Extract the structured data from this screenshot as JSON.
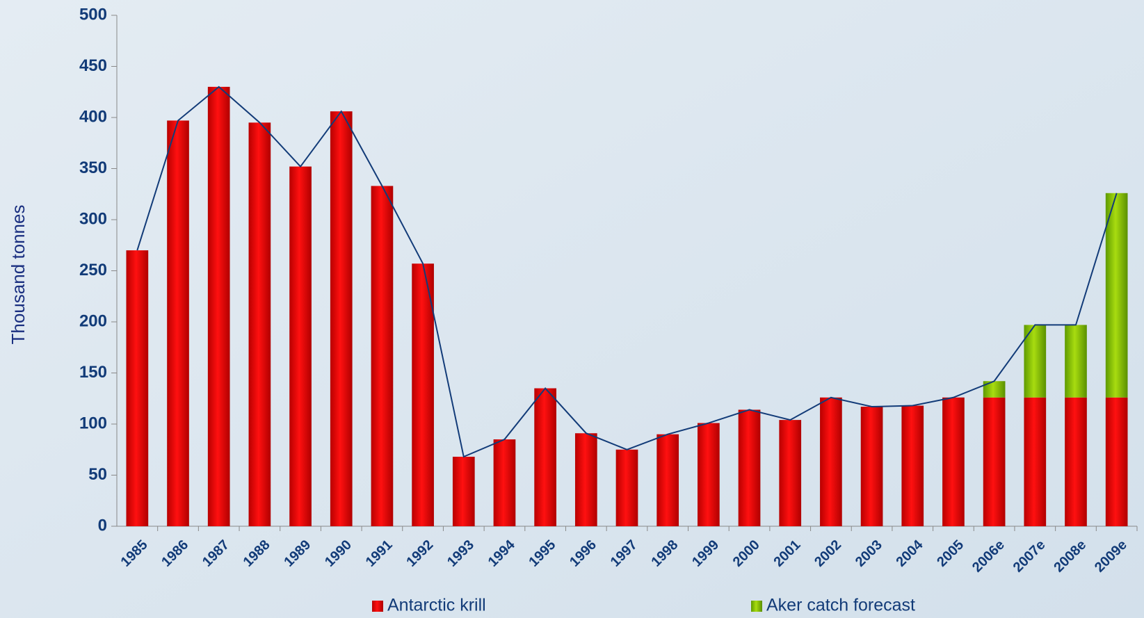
{
  "chart_data": {
    "type": "stacked_bar",
    "y_label": "Thousand tonnes",
    "categories": [
      "1985",
      "1986",
      "1987",
      "1988",
      "1989",
      "1990",
      "1991",
      "1992",
      "1993",
      "1994",
      "1995",
      "1996",
      "1997",
      "1998",
      "1999",
      "2000",
      "2001",
      "2002",
      "2003",
      "2004",
      "2005",
      "2006e",
      "2007e",
      "2008e",
      "2009e"
    ],
    "series": [
      {
        "name": "Antarctic krill",
        "color": "#e00000",
        "values": [
          270,
          397,
          430,
          395,
          352,
          406,
          333,
          257,
          68,
          85,
          135,
          91,
          75,
          90,
          101,
          114,
          104,
          126,
          117,
          118,
          126,
          126,
          126,
          126,
          126
        ]
      },
      {
        "name": "Aker catch forecast",
        "color": "#8cc400",
        "values": [
          null,
          null,
          null,
          null,
          null,
          null,
          null,
          null,
          null,
          null,
          null,
          null,
          null,
          null,
          null,
          null,
          null,
          null,
          null,
          null,
          null,
          16,
          71,
          71,
          200
        ]
      }
    ],
    "ylim": [
      0,
      500
    ],
    "yticks": [
      0,
      50,
      100,
      150,
      200,
      250,
      300,
      350,
      400,
      450,
      500
    ]
  }
}
